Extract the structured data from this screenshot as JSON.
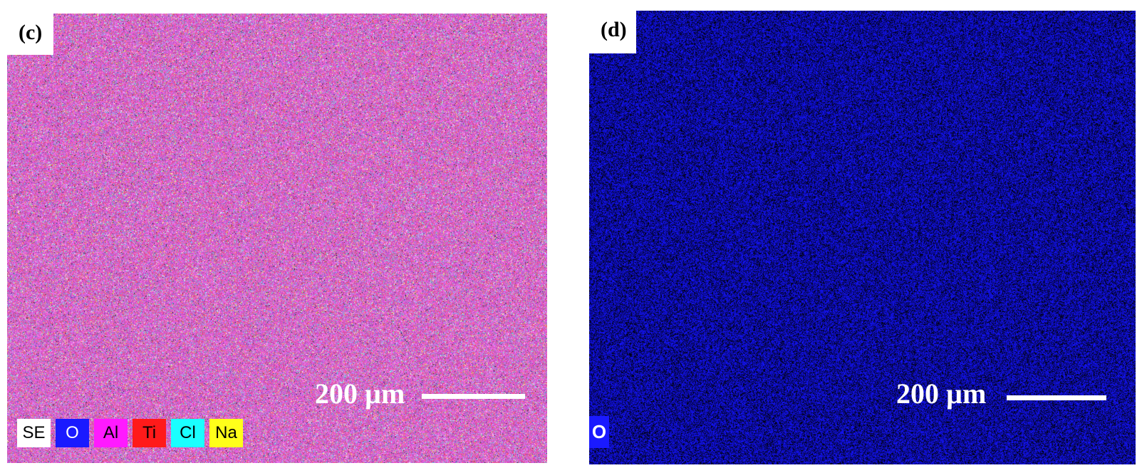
{
  "panel_c": {
    "letter": "(c)",
    "scale_label": "200 µm",
    "legend": [
      {
        "label": "SE",
        "color": "#ffffff",
        "text_color": "#000000"
      },
      {
        "label": "O",
        "color": "#1a1aff",
        "text_color": "#ffffff"
      },
      {
        "label": "Al",
        "color": "#ff1aff",
        "text_color": "#000000"
      },
      {
        "label": "Ti",
        "color": "#ff1a1a",
        "text_color": "#000000"
      },
      {
        "label": "Cl",
        "color": "#1affff",
        "text_color": "#000000"
      },
      {
        "label": "Na",
        "color": "#ffff1a",
        "text_color": "#000000"
      }
    ]
  },
  "panel_d": {
    "letter": "(d)",
    "scale_label": "200 µm",
    "element_label": "O",
    "map_color": "#1a1aff"
  }
}
